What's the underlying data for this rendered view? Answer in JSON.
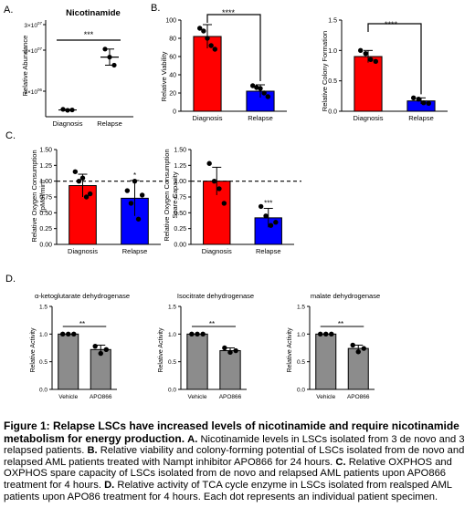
{
  "panels": {
    "A": {
      "letter": "A.",
      "title": "Nicotinamide",
      "ylabel": "Relative Abundance",
      "yticks": [
        "3×10",
        "2×10",
        "1×10"
      ],
      "ytick_exps": [
        "07",
        "07",
        "06"
      ],
      "categories": [
        "Diagnosis",
        "Relapse"
      ],
      "sig": "***"
    },
    "B1": {
      "letter": "B.",
      "ylabel": "Relative Viability",
      "yticks": [
        "0",
        "20",
        "40",
        "60",
        "80",
        "100"
      ],
      "categories": [
        "Diagnosis",
        "Relapse"
      ],
      "sig": "****"
    },
    "B2": {
      "ylabel": "Relative Colony Formation",
      "yticks": [
        "0.0",
        "0.5",
        "1.0",
        "1.5"
      ],
      "categories": [
        "Diagnosis",
        "Relapse"
      ],
      "sig": "****"
    },
    "C1": {
      "letter": "C.",
      "ylabel": [
        "Relative Oxygen Consumption",
        "(pMol/min)"
      ],
      "yticks": [
        "0.00",
        "0.25",
        "0.50",
        "0.75",
        "1.00",
        "1.25",
        "1.50"
      ],
      "categories": [
        "Diagnosis",
        "Relapse"
      ],
      "sig": "*"
    },
    "C2": {
      "ylabel": [
        "Relative Oxygen Consumption",
        "Spare Capacity"
      ],
      "yticks": [
        "0.00",
        "0.25",
        "0.50",
        "0.75",
        "1.00",
        "1.25",
        "1.50"
      ],
      "categories": [
        "Diagnosis",
        "Relapse"
      ],
      "sig": "***"
    },
    "D": {
      "letter": "D.",
      "ylabel": "Relative  Activity",
      "yticks": [
        "0.0",
        "0.5",
        "1.0",
        "1.5"
      ],
      "categories": [
        "Vehicle",
        "APO866"
      ],
      "sig": "**",
      "titles": [
        "α-ketoglutarate dehydrogenase",
        "Isocitrate dehydrogenase",
        "malate dehydrogenase"
      ]
    }
  },
  "colors": {
    "diagnosis": "#ff0000",
    "relapse": "#0000ff",
    "grey_bar": "#8c8c8c"
  },
  "chart_data": [
    {
      "id": "A",
      "type": "scatter",
      "title": "Nicotinamide",
      "ylabel": "Relative Abundance",
      "categories": [
        "Diagnosis",
        "Relapse"
      ],
      "ylim": [
        0,
        30000000
      ],
      "points": [
        [
          2300000,
          2000000,
          2100000
        ],
        [
          21000000,
          18500000,
          16000000
        ]
      ],
      "means": [
        2100000,
        18500000
      ],
      "sd": [
        200000,
        2500000
      ]
    },
    {
      "id": "B1",
      "type": "bar",
      "ylabel": "Relative Viability",
      "categories": [
        "Diagnosis",
        "Relapse"
      ],
      "ylim": [
        0,
        100
      ],
      "values": [
        82,
        22
      ],
      "sd": [
        13,
        7
      ],
      "points": [
        [
          91,
          88,
          80,
          72,
          68
        ],
        [
          28,
          26,
          25,
          20,
          16
        ]
      ]
    },
    {
      "id": "B2",
      "type": "bar",
      "ylabel": "Relative Colony Formation",
      "categories": [
        "Diagnosis",
        "Relapse"
      ],
      "ylim": [
        0,
        1.5
      ],
      "values": [
        0.9,
        0.17
      ],
      "sd": [
        0.1,
        0.05
      ],
      "points": [
        [
          1.0,
          0.95,
          0.85,
          0.82
        ],
        [
          0.22,
          0.2,
          0.14,
          0.13
        ]
      ]
    },
    {
      "id": "C1",
      "type": "bar",
      "ylabel": "Relative Oxygen Consumption (pMol/min)",
      "categories": [
        "Diagnosis",
        "Relapse"
      ],
      "ylim": [
        0,
        1.5
      ],
      "reference_line": 1.0,
      "values": [
        0.93,
        0.73
      ],
      "sd": [
        0.18,
        0.28
      ],
      "points": [
        [
          1.15,
          1.0,
          1.05,
          0.75,
          0.8
        ],
        [
          0.85,
          0.65,
          1.0,
          0.4,
          0.78
        ]
      ]
    },
    {
      "id": "C2",
      "type": "bar",
      "ylabel": "Relative Oxygen Consumption Spare Capacity",
      "categories": [
        "Diagnosis",
        "Relapse"
      ],
      "ylim": [
        0,
        1.5
      ],
      "reference_line": 1.0,
      "values": [
        1.0,
        0.42
      ],
      "sd": [
        0.22,
        0.15
      ],
      "points": [
        [
          1.28,
          1.0,
          0.88,
          0.65
        ],
        [
          0.6,
          0.45,
          0.3,
          0.35
        ]
      ]
    },
    {
      "id": "D1",
      "type": "bar",
      "title": "α-ketoglutarate dehydrogenase",
      "ylabel": "Relative  Activity",
      "categories": [
        "Vehicle",
        "APO866"
      ],
      "ylim": [
        0,
        1.5
      ],
      "values": [
        1.0,
        0.72
      ],
      "sd": [
        0.0,
        0.08
      ],
      "points": [
        [
          1.0,
          1.0,
          1.0
        ],
        [
          0.78,
          0.65,
          0.72
        ]
      ]
    },
    {
      "id": "D2",
      "type": "bar",
      "title": "Isocitrate dehydrogenase",
      "ylabel": "Relative  Activity",
      "categories": [
        "Vehicle",
        "APO866"
      ],
      "ylim": [
        0,
        1.5
      ],
      "values": [
        1.0,
        0.7
      ],
      "sd": [
        0.0,
        0.05
      ],
      "points": [
        [
          1.0,
          1.0,
          1.0
        ],
        [
          0.75,
          0.67,
          0.7
        ]
      ]
    },
    {
      "id": "D3",
      "type": "bar",
      "title": "malate dehydrogenase",
      "ylabel": "Relative  Activity",
      "categories": [
        "Vehicle",
        "APO866"
      ],
      "ylim": [
        0,
        1.5
      ],
      "values": [
        1.0,
        0.74
      ],
      "sd": [
        0.0,
        0.06
      ],
      "points": [
        [
          1.0,
          1.0,
          1.0
        ],
        [
          0.8,
          0.68,
          0.74
        ]
      ]
    }
  ],
  "caption": {
    "title": "Figure 1: Relapse LSCs have increased levels of nicotinamide and require nicotinamide metabolism for energy production.",
    "parts": [
      {
        "label": "A.",
        "text": "Nicotinamide levels in LSCs isolated from 3 de novo and 3 relapsed patients."
      },
      {
        "label": "B.",
        "text": "Relative viability and colony-forming  potential of LSCs isolated from de novo and relapsed AML patients treated with Nampt inhibitor APO866 for 24 hours."
      },
      {
        "label": "C.",
        "text": "Relative OXPHOS and OXPHOS spare capacity of LSCs isolated from de novo and relapsed AML patients upon APO866 treatment for 4 hours."
      },
      {
        "label": "D.",
        "text": "Relative activity of TCA cycle enzyme in LSCs isolated from realsped AML patients upon APO86 treatment for 4 hours. Each dot represents an individual patient specimen."
      }
    ]
  }
}
